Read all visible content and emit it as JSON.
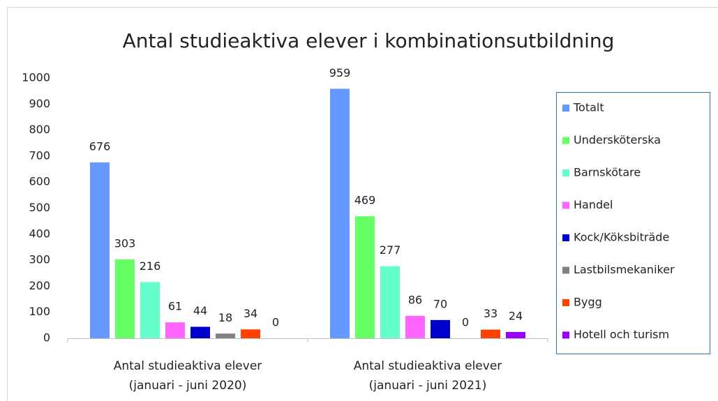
{
  "chart_data": {
    "type": "bar",
    "title": "Antal studieaktiva elever i kombinationsutbildning",
    "categories": [
      "Antal studieaktiva elever (januari - juni 2020)",
      "Antal studieaktiva elever (januari - juni 2021)"
    ],
    "series": [
      {
        "name": "Totalt",
        "color": "#6699ff",
        "values": [
          676,
          959
        ]
      },
      {
        "name": "Undersköterska",
        "color": "#66ff66",
        "values": [
          303,
          469
        ]
      },
      {
        "name": "Barnskötare",
        "color": "#66ffcc",
        "values": [
          216,
          277
        ]
      },
      {
        "name": "Handel",
        "color": "#ff66ff",
        "values": [
          61,
          86
        ]
      },
      {
        "name": "Kock/Köksbiträde",
        "color": "#0000cc",
        "values": [
          44,
          70
        ]
      },
      {
        "name": "Lastbilsmekaniker",
        "color": "#808080",
        "values": [
          18,
          0
        ]
      },
      {
        "name": "Bygg",
        "color": "#ff4000",
        "values": [
          34,
          33
        ]
      },
      {
        "name": "Hotell och turism",
        "color": "#9900ff",
        "values": [
          0,
          24
        ]
      }
    ],
    "ylim": [
      0,
      1000
    ],
    "yticks": [
      0,
      100,
      200,
      300,
      400,
      500,
      600,
      700,
      800,
      900,
      1000
    ],
    "grid": false,
    "legend": "right"
  }
}
